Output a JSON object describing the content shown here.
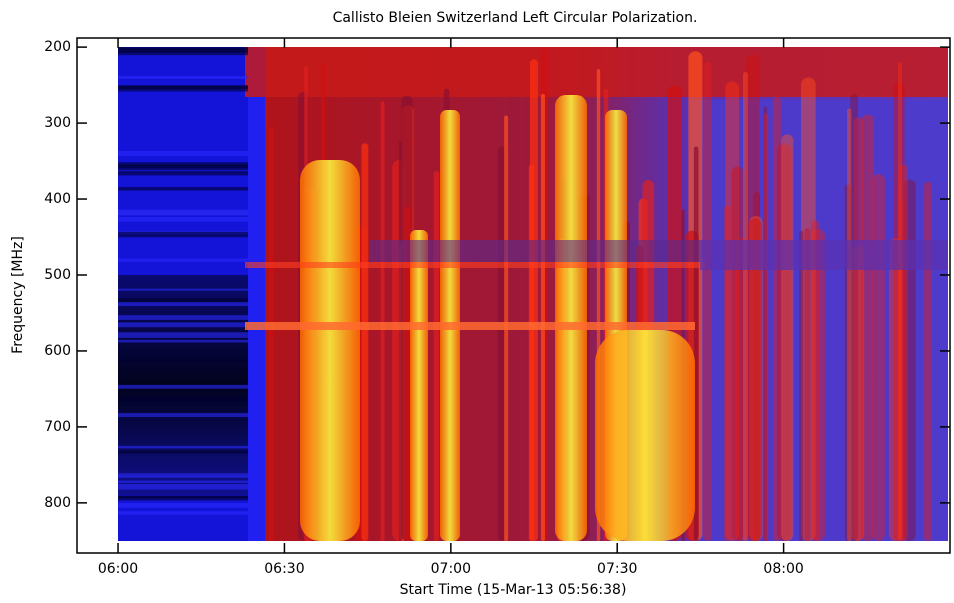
{
  "chart_data": {
    "type": "spectrogram",
    "title": "Callisto Bleien Switzerland Left Circular Polarization.",
    "x_label": "Start Time (15-Mar-13 05:56:38)",
    "y_label": "Frequency [MHz]",
    "xlim": [
      352.6,
      510
    ],
    "xticks": [
      {
        "value": 360,
        "label": "06:00"
      },
      {
        "value": 390,
        "label": "06:30"
      },
      {
        "value": 420,
        "label": "07:00"
      },
      {
        "value": 450,
        "label": "07:30"
      },
      {
        "value": 480,
        "label": "08:00"
      }
    ],
    "ylim": [
      866,
      188
    ],
    "yticks": [
      200,
      300,
      400,
      500,
      600,
      700,
      800
    ]
  }
}
